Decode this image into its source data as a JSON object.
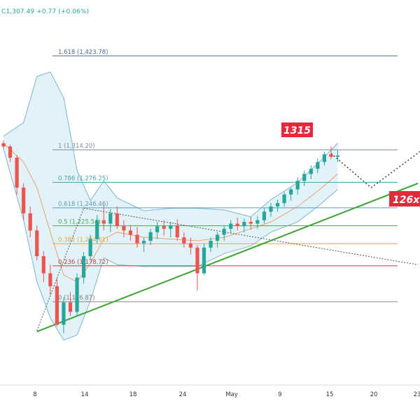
{
  "header": {
    "ohlc_text": "C1,307.49 +0.77 (+0.06%)"
  },
  "annotations": {
    "target_label": "1315",
    "support_label": "126x"
  },
  "colors": {
    "up": "#26a69a",
    "down": "#ef5350",
    "bb_band": "#7cb7cf",
    "bb_fill": "#e1f2f8",
    "basis": "#f0a070",
    "trendline": "#3ba336",
    "badge": "#e8283a",
    "fib_1618": "#4a6c8f",
    "fib_1": "#7a8a9a",
    "fib_0786": "#4aa6a6",
    "fib_0618": "#5b9bc0",
    "fib_05": "#4caf50",
    "fib_0382": "#e8a838",
    "fib_0236": "#c2444a",
    "fib_0": "#808080"
  },
  "chart_data": {
    "type": "candlestick",
    "title": "",
    "xlabel": "",
    "ylabel": "",
    "x_ticks": [
      "8",
      "14",
      "18",
      "24",
      "May",
      "9",
      "15",
      "20",
      "23"
    ],
    "ylim": [
      1080,
      1530
    ],
    "fib_levels": [
      {
        "ratio": "1.618",
        "price": "1,423.78",
        "value": 1423.78,
        "color_key": "fib_1618"
      },
      {
        "ratio": "1",
        "price": "1,314.20",
        "value": 1314.2,
        "color_key": "fib_1"
      },
      {
        "ratio": "0.786",
        "price": "1,276.25",
        "value": 1276.25,
        "color_key": "fib_0786"
      },
      {
        "ratio": "0.618",
        "price": "1,246.46",
        "value": 1246.46,
        "color_key": "fib_0618"
      },
      {
        "ratio": "0.5",
        "price": "1,225.54",
        "value": 1225.54,
        "color_key": "fib_05"
      },
      {
        "ratio": "0.382",
        "price": "1,204.61",
        "value": 1204.61,
        "color_key": "fib_0382"
      },
      {
        "ratio": "0.236",
        "price": "1,178.72",
        "value": 1178.72,
        "color_key": "fib_0236"
      },
      {
        "ratio": "0",
        "price": "1,136.87",
        "value": 1136.87,
        "color_key": "fib_0"
      }
    ],
    "candles": [
      [
        1322,
        1325,
        1315,
        1318
      ],
      [
        1318,
        1320,
        1300,
        1305
      ],
      [
        1305,
        1308,
        1262,
        1270
      ],
      [
        1270,
        1275,
        1232,
        1240
      ],
      [
        1240,
        1248,
        1212,
        1220
      ],
      [
        1220,
        1226,
        1185,
        1190
      ],
      [
        1190,
        1196,
        1160,
        1170
      ],
      [
        1170,
        1180,
        1145,
        1155
      ],
      [
        1155,
        1165,
        1108,
        1110
      ],
      [
        1110,
        1142,
        1100,
        1136
      ],
      [
        1136,
        1148,
        1120,
        1125
      ],
      [
        1125,
        1170,
        1120,
        1165
      ],
      [
        1165,
        1195,
        1158,
        1190
      ],
      [
        1190,
        1215,
        1185,
        1210
      ],
      [
        1210,
        1238,
        1205,
        1232
      ],
      [
        1232,
        1250,
        1220,
        1228
      ],
      [
        1228,
        1245,
        1218,
        1240
      ],
      [
        1240,
        1248,
        1222,
        1225
      ],
      [
        1225,
        1232,
        1212,
        1220
      ],
      [
        1220,
        1226,
        1208,
        1215
      ],
      [
        1215,
        1224,
        1200,
        1205
      ],
      [
        1205,
        1212,
        1195,
        1208
      ],
      [
        1208,
        1222,
        1203,
        1218
      ],
      [
        1218,
        1230,
        1210,
        1225
      ],
      [
        1225,
        1232,
        1214,
        1222
      ],
      [
        1222,
        1230,
        1212,
        1226
      ],
      [
        1226,
        1233,
        1208,
        1212
      ],
      [
        1212,
        1218,
        1200,
        1205
      ],
      [
        1205,
        1212,
        1192,
        1200
      ],
      [
        1200,
        1203,
        1150,
        1170
      ],
      [
        1170,
        1205,
        1168,
        1200
      ],
      [
        1200,
        1212,
        1195,
        1208
      ],
      [
        1208,
        1218,
        1200,
        1215
      ],
      [
        1215,
        1226,
        1208,
        1222
      ],
      [
        1222,
        1232,
        1216,
        1228
      ],
      [
        1228,
        1235,
        1220,
        1225
      ],
      [
        1225,
        1234,
        1218,
        1230
      ],
      [
        1230,
        1236,
        1221,
        1228
      ],
      [
        1228,
        1237,
        1222,
        1232
      ],
      [
        1232,
        1246,
        1228,
        1242
      ],
      [
        1242,
        1252,
        1236,
        1248
      ],
      [
        1248,
        1256,
        1242,
        1252
      ],
      [
        1252,
        1265,
        1248,
        1262
      ],
      [
        1262,
        1270,
        1255,
        1268
      ],
      [
        1268,
        1282,
        1262,
        1278
      ],
      [
        1278,
        1290,
        1272,
        1286
      ],
      [
        1286,
        1296,
        1280,
        1292
      ],
      [
        1292,
        1304,
        1287,
        1300
      ],
      [
        1300,
        1312,
        1296,
        1309
      ],
      [
        1309,
        1318,
        1303,
        1306
      ],
      [
        1306,
        1314,
        1300,
        1307.49
      ]
    ],
    "bollinger": {
      "upper": [
        [
          0,
          1330
        ],
        [
          3,
          1346
        ],
        [
          5,
          1400
        ],
        [
          7,
          1405
        ],
        [
          9,
          1375
        ],
        [
          11,
          1290
        ],
        [
          13,
          1255
        ],
        [
          15,
          1278
        ],
        [
          17,
          1258
        ],
        [
          21,
          1243
        ],
        [
          25,
          1246
        ],
        [
          29,
          1246
        ],
        [
          33,
          1244
        ],
        [
          37,
          1236
        ],
        [
          40,
          1256
        ],
        [
          44,
          1276
        ],
        [
          47,
          1298
        ],
        [
          50,
          1322
        ]
      ],
      "lower": [
        [
          0,
          1315
        ],
        [
          3,
          1232
        ],
        [
          5,
          1160
        ],
        [
          7,
          1118
        ],
        [
          9,
          1092
        ],
        [
          11,
          1098
        ],
        [
          13,
          1138
        ],
        [
          15,
          1188
        ],
        [
          17,
          1180
        ],
        [
          21,
          1178
        ],
        [
          25,
          1178
        ],
        [
          29,
          1178
        ],
        [
          33,
          1193
        ],
        [
          37,
          1202
        ],
        [
          40,
          1218
        ],
        [
          44,
          1230
        ],
        [
          47,
          1248
        ],
        [
          50,
          1268
        ]
      ],
      "basis": [
        [
          0,
          1322
        ],
        [
          3,
          1300
        ],
        [
          5,
          1270
        ],
        [
          7,
          1218
        ],
        [
          9,
          1168
        ],
        [
          11,
          1160
        ],
        [
          13,
          1182
        ],
        [
          15,
          1210
        ],
        [
          17,
          1218
        ],
        [
          21,
          1212
        ],
        [
          25,
          1210
        ],
        [
          29,
          1208
        ],
        [
          33,
          1212
        ],
        [
          37,
          1222
        ],
        [
          40,
          1230
        ],
        [
          44,
          1248
        ],
        [
          47,
          1266
        ],
        [
          50,
          1286
        ]
      ]
    },
    "trendline": [
      [
        5,
        1102
      ],
      [
        62,
        1275
      ]
    ],
    "dotted_lines": [
      {
        "from": [
          5,
          1103
        ],
        "to": [
          12,
          1246
        ]
      },
      {
        "from": [
          12,
          1246
        ],
        "to": [
          62,
          1180
        ]
      },
      {
        "from": [
          49,
          1310
        ],
        "to": [
          55,
          1270
        ]
      },
      {
        "from": [
          55,
          1270
        ],
        "to": [
          68,
          1345
        ]
      }
    ]
  }
}
